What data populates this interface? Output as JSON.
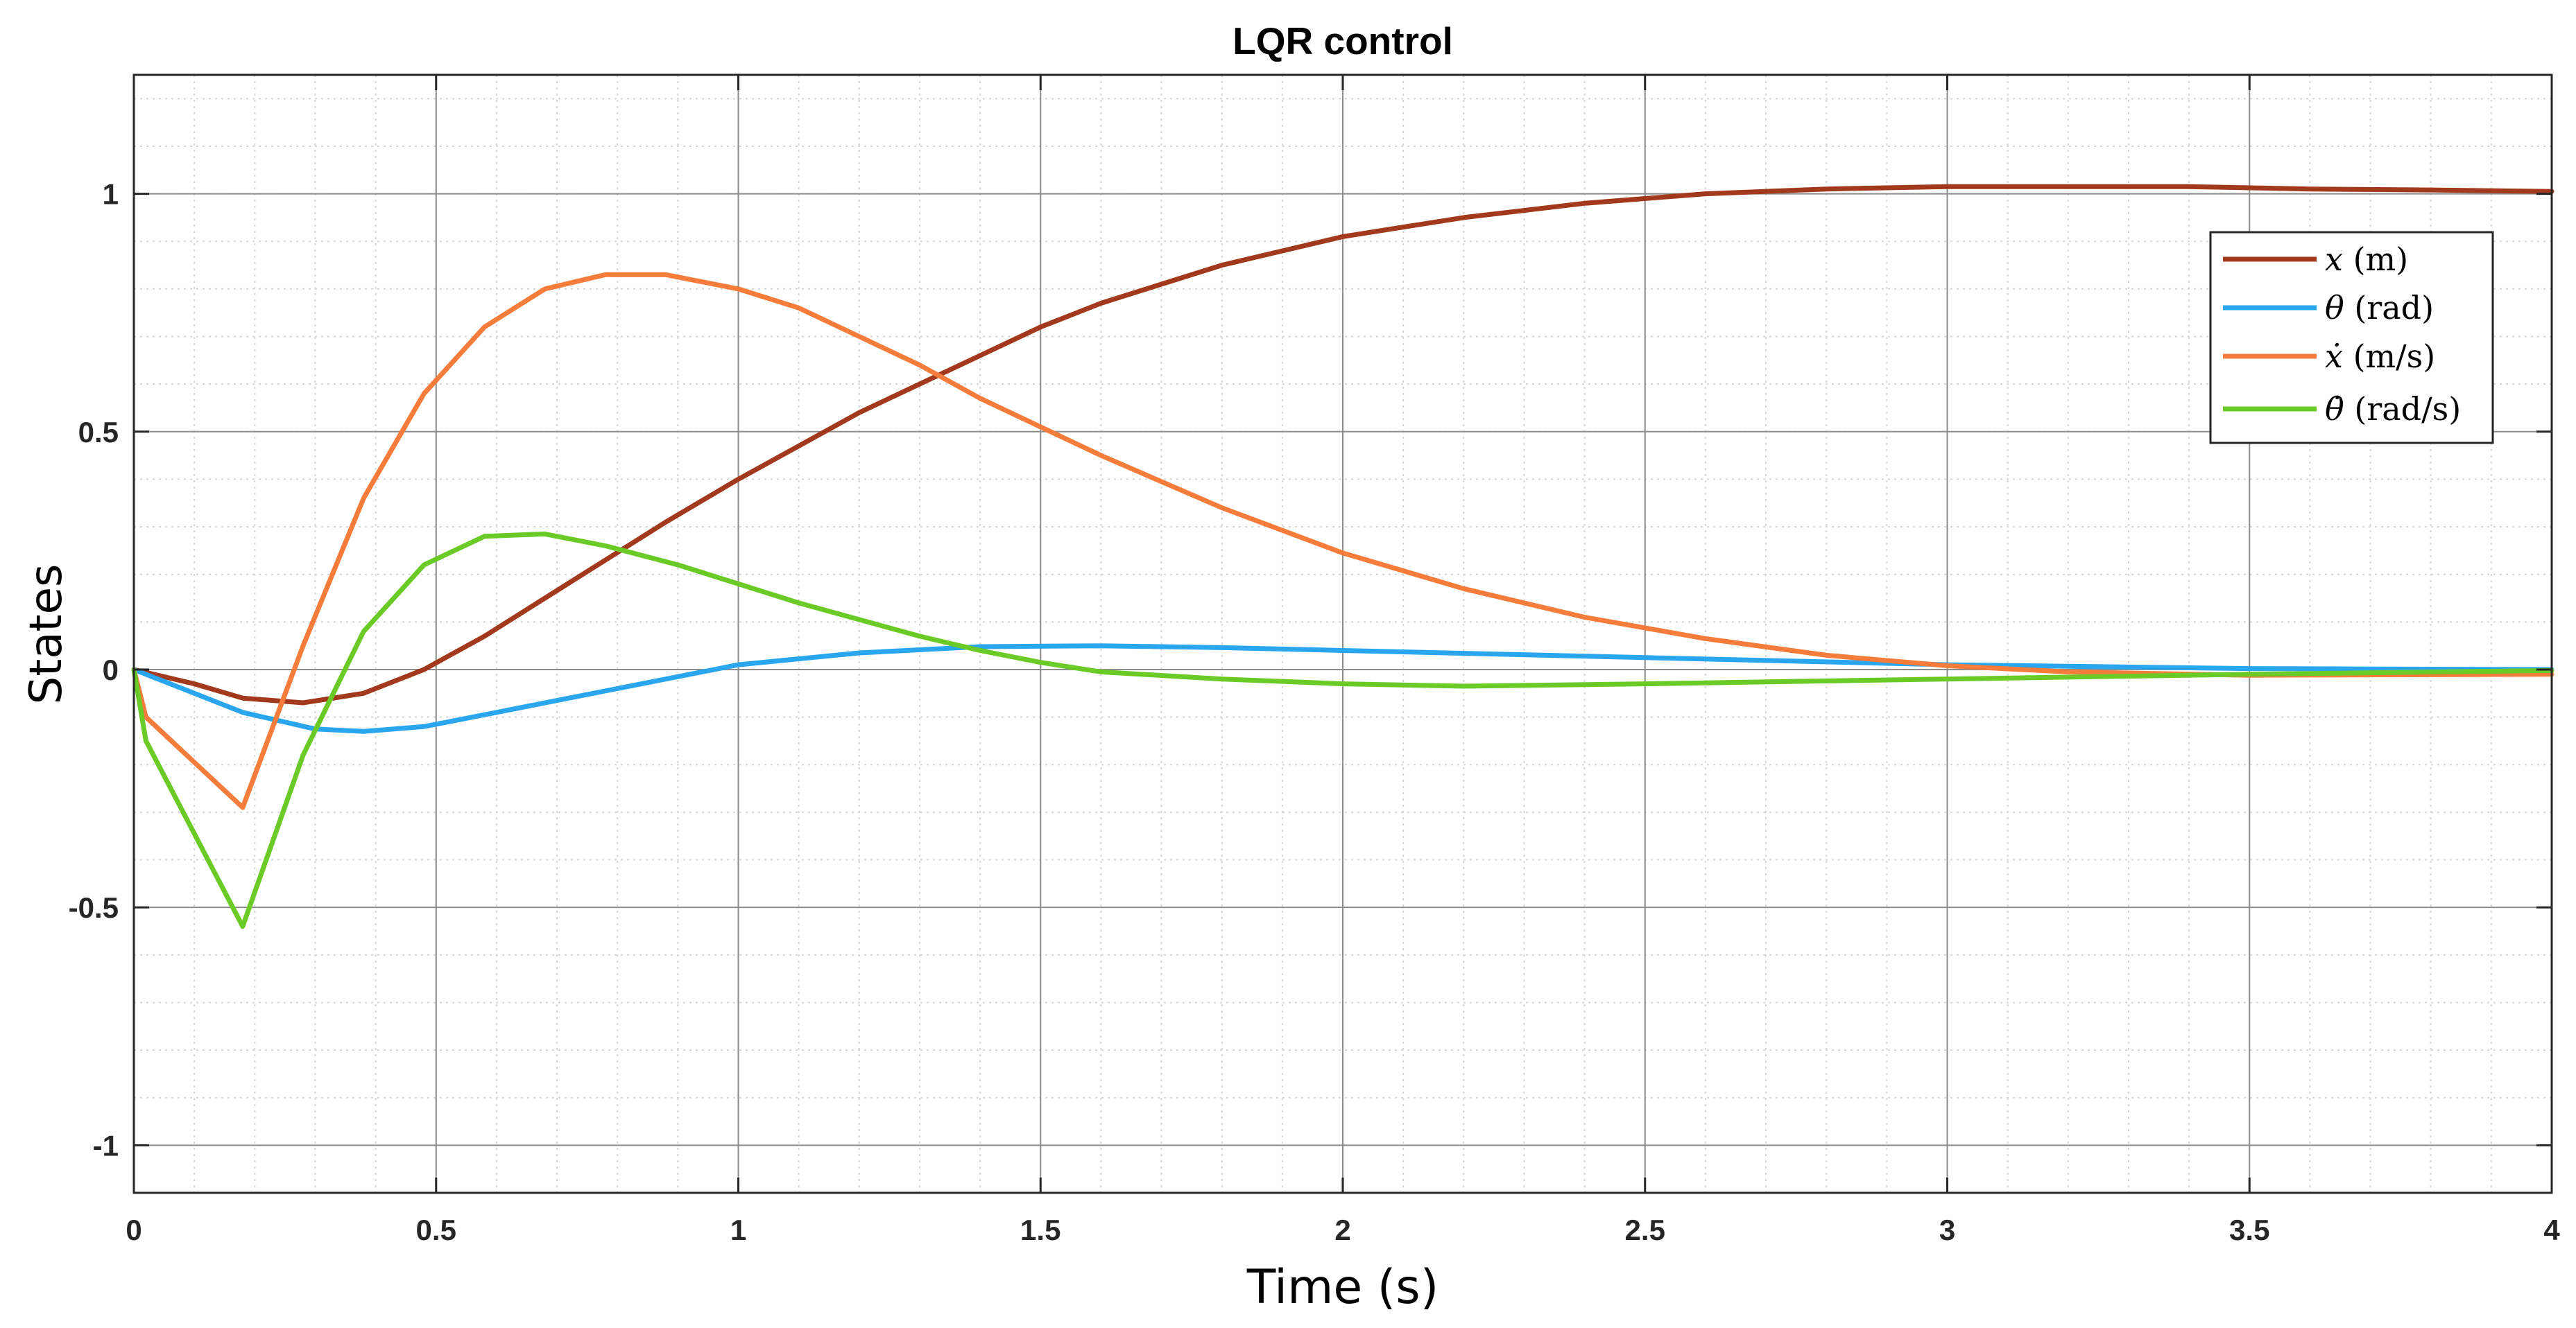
{
  "chart_data": {
    "type": "line",
    "title": "LQR control",
    "xlabel": "Time (s)",
    "ylabel": "States",
    "xlim": [
      0,
      4
    ],
    "ylim": [
      -1.1,
      1.25
    ],
    "grid": true,
    "minor_grid": true,
    "legend_position": "top-right",
    "xticks": [
      0,
      0.5,
      1,
      1.5,
      2,
      2.5,
      3,
      3.5,
      4
    ],
    "xtick_labels": [
      "0",
      "0.5",
      "1",
      "1.5",
      "2",
      "2.5",
      "3",
      "3.5",
      "4"
    ],
    "yticks": [
      1,
      0.5,
      0,
      -0.5,
      -1
    ],
    "ytick_labels": [
      "1",
      "0.5",
      "0",
      "-0.5",
      "-1"
    ],
    "series": [
      {
        "name": "x (m)",
        "legend_symbol": "x",
        "legend_unit": " (m)",
        "color": "#a2391c",
        "points": [
          [
            0,
            0
          ],
          [
            0.1,
            -0.03
          ],
          [
            0.18,
            -0.06
          ],
          [
            0.28,
            -0.07
          ],
          [
            0.38,
            -0.05
          ],
          [
            0.48,
            0
          ],
          [
            0.58,
            0.07
          ],
          [
            0.68,
            0.15
          ],
          [
            0.78,
            0.23
          ],
          [
            0.88,
            0.31
          ],
          [
            1.0,
            0.4
          ],
          [
            1.1,
            0.47
          ],
          [
            1.2,
            0.54
          ],
          [
            1.3,
            0.6
          ],
          [
            1.4,
            0.66
          ],
          [
            1.5,
            0.72
          ],
          [
            1.6,
            0.77
          ],
          [
            1.7,
            0.81
          ],
          [
            1.8,
            0.85
          ],
          [
            1.9,
            0.88
          ],
          [
            2.0,
            0.91
          ],
          [
            2.2,
            0.95
          ],
          [
            2.4,
            0.98
          ],
          [
            2.6,
            1.0
          ],
          [
            2.8,
            1.01
          ],
          [
            3.0,
            1.015
          ],
          [
            3.2,
            1.015
          ],
          [
            3.4,
            1.015
          ],
          [
            3.6,
            1.01
          ],
          [
            3.8,
            1.008
          ],
          [
            4.0,
            1.005
          ]
        ]
      },
      {
        "name": "θ (rad)",
        "legend_symbol": "θ",
        "legend_unit": " (rad)",
        "color": "#2aa6ee",
        "points": [
          [
            0,
            0
          ],
          [
            0.08,
            -0.04
          ],
          [
            0.18,
            -0.09
          ],
          [
            0.3,
            -0.125
          ],
          [
            0.38,
            -0.13
          ],
          [
            0.48,
            -0.12
          ],
          [
            0.6,
            -0.09
          ],
          [
            0.8,
            -0.04
          ],
          [
            1.0,
            0.01
          ],
          [
            1.2,
            0.035
          ],
          [
            1.4,
            0.048
          ],
          [
            1.6,
            0.05
          ],
          [
            1.8,
            0.046
          ],
          [
            2.0,
            0.04
          ],
          [
            2.5,
            0.025
          ],
          [
            3.0,
            0.01
          ],
          [
            3.5,
            0.002
          ],
          [
            4.0,
            0
          ]
        ]
      },
      {
        "name": "ẋ (m/s)",
        "legend_symbol": "ẋ",
        "legend_unit": " (m/s)",
        "color": "#f57c3a",
        "points": [
          [
            0,
            0
          ],
          [
            0.02,
            -0.1
          ],
          [
            0.18,
            -0.29
          ],
          [
            0.28,
            0.05
          ],
          [
            0.38,
            0.36
          ],
          [
            0.48,
            0.58
          ],
          [
            0.58,
            0.72
          ],
          [
            0.68,
            0.8
          ],
          [
            0.78,
            0.83
          ],
          [
            0.88,
            0.83
          ],
          [
            1.0,
            0.8
          ],
          [
            1.1,
            0.76
          ],
          [
            1.2,
            0.7
          ],
          [
            1.3,
            0.64
          ],
          [
            1.4,
            0.57
          ],
          [
            1.5,
            0.51
          ],
          [
            1.6,
            0.45
          ],
          [
            1.8,
            0.34
          ],
          [
            2.0,
            0.245
          ],
          [
            2.2,
            0.17
          ],
          [
            2.4,
            0.11
          ],
          [
            2.6,
            0.065
          ],
          [
            2.8,
            0.03
          ],
          [
            3.0,
            0.008
          ],
          [
            3.2,
            -0.005
          ],
          [
            3.5,
            -0.012
          ],
          [
            4.0,
            -0.01
          ]
        ]
      },
      {
        "name": "θ̇ (rad/s)",
        "legend_symbol": "θ̇",
        "legend_unit": " (rad/s)",
        "color": "#6acb27",
        "points": [
          [
            0,
            0
          ],
          [
            0.02,
            -0.15
          ],
          [
            0.18,
            -0.54
          ],
          [
            0.28,
            -0.18
          ],
          [
            0.38,
            0.08
          ],
          [
            0.48,
            0.22
          ],
          [
            0.58,
            0.28
          ],
          [
            0.68,
            0.285
          ],
          [
            0.78,
            0.26
          ],
          [
            0.9,
            0.22
          ],
          [
            1.0,
            0.18
          ],
          [
            1.1,
            0.14
          ],
          [
            1.2,
            0.105
          ],
          [
            1.3,
            0.07
          ],
          [
            1.4,
            0.04
          ],
          [
            1.5,
            0.015
          ],
          [
            1.6,
            -0.005
          ],
          [
            1.8,
            -0.02
          ],
          [
            2.0,
            -0.03
          ],
          [
            2.2,
            -0.035
          ],
          [
            2.5,
            -0.03
          ],
          [
            3.0,
            -0.02
          ],
          [
            3.5,
            -0.01
          ],
          [
            4.0,
            -0.002
          ]
        ]
      }
    ]
  }
}
